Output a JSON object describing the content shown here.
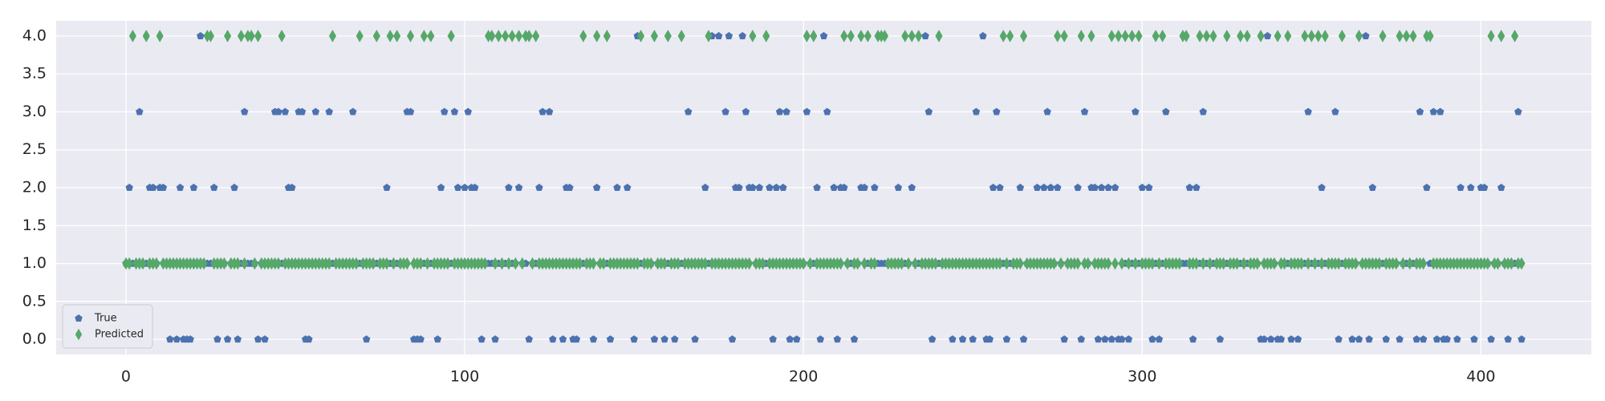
{
  "chart_data": {
    "type": "scatter",
    "x": [
      0,
      1,
      2,
      3,
      4,
      5,
      6,
      7,
      8,
      9,
      10,
      11,
      12,
      13,
      14,
      15,
      16,
      17,
      18,
      19,
      20,
      21,
      22,
      23,
      24,
      25,
      26,
      27,
      28,
      29,
      30,
      31,
      32,
      33,
      34,
      35,
      36,
      37,
      38,
      39,
      40,
      41,
      42,
      43,
      44,
      45,
      46,
      47,
      48,
      49,
      50,
      51,
      52,
      53,
      54,
      55,
      56,
      57,
      58,
      59,
      60,
      61,
      62,
      63,
      64,
      65,
      66,
      67,
      68,
      69,
      70,
      71,
      72,
      73,
      74,
      75,
      76,
      77,
      78,
      79,
      80,
      81,
      82,
      83,
      84,
      85,
      86,
      87,
      88,
      89,
      90,
      91,
      92,
      93,
      94,
      95,
      96,
      97,
      98,
      99,
      100,
      101,
      102,
      103,
      104,
      105,
      106,
      107,
      108,
      109,
      110,
      111,
      112,
      113,
      114,
      115,
      116,
      117,
      118,
      119,
      120,
      121,
      122,
      123,
      124,
      125,
      126,
      127,
      128,
      129,
      130,
      131,
      132,
      133,
      134,
      135,
      136,
      137,
      138,
      139,
      140,
      141,
      142,
      143,
      144,
      145,
      146,
      147,
      148,
      149,
      150,
      151,
      152,
      153,
      154,
      155,
      156,
      157,
      158,
      159,
      160,
      161,
      162,
      163,
      164,
      165,
      166,
      167,
      168,
      169,
      170,
      171,
      172,
      173,
      174,
      175,
      176,
      177,
      178,
      179,
      180,
      181,
      182,
      183,
      184,
      185,
      186,
      187,
      188,
      189,
      190,
      191,
      192,
      193,
      194,
      195,
      196,
      197,
      198,
      199,
      200,
      201,
      202,
      203,
      204,
      205,
      206,
      207,
      208,
      209,
      210,
      211,
      212,
      213,
      214,
      215,
      216,
      217,
      218,
      219,
      220,
      221,
      222,
      223,
      224,
      225,
      226,
      227,
      228,
      229,
      230,
      231,
      232,
      233,
      234,
      235,
      236,
      237,
      238,
      239,
      240,
      241,
      242,
      243,
      244,
      245,
      246,
      247,
      248,
      249,
      250,
      251,
      252,
      253,
      254,
      255,
      256,
      257,
      258,
      259,
      260,
      261,
      262,
      263,
      264,
      265,
      266,
      267,
      268,
      269,
      270,
      271,
      272,
      273,
      274,
      275,
      276,
      277,
      278,
      279,
      280,
      281,
      282,
      283,
      284,
      285,
      286,
      287,
      288,
      289,
      290,
      291,
      292,
      293,
      294,
      295,
      296,
      297,
      298,
      299,
      300,
      301,
      302,
      303,
      304,
      305,
      306,
      307,
      308,
      309,
      310,
      311,
      312,
      313,
      314,
      315,
      316,
      317,
      318,
      319,
      320,
      321,
      322,
      323,
      324,
      325,
      326,
      327,
      328,
      329,
      330,
      331,
      332,
      333,
      334,
      335,
      336,
      337,
      338,
      339,
      340,
      341,
      342,
      343,
      344,
      345,
      346,
      347,
      348,
      349,
      350,
      351,
      352,
      353,
      354,
      355,
      356,
      357,
      358,
      359,
      360,
      361,
      362,
      363,
      364,
      365,
      366,
      367,
      368,
      369,
      370,
      371,
      372,
      373,
      374,
      375,
      376,
      377,
      378,
      379,
      380,
      381,
      382,
      383,
      384,
      385,
      386,
      387,
      388,
      389,
      390,
      391,
      392,
      393,
      394,
      395,
      396,
      397,
      398,
      399,
      400,
      401,
      402,
      403,
      404,
      405,
      406,
      407,
      408,
      409,
      410,
      411,
      412
    ],
    "series": [
      {
        "name": "True",
        "color": "#4c72b0",
        "marker": "pentagon",
        "values": [
          1,
          2,
          1,
          1,
          3,
          1,
          1,
          2,
          2,
          1,
          2,
          2,
          1,
          0,
          1,
          0,
          2,
          0,
          0,
          0,
          2,
          1,
          4,
          1,
          1,
          1,
          2,
          0,
          1,
          1,
          0,
          1,
          2,
          0,
          1,
          3,
          1,
          1,
          1,
          0,
          1,
          0,
          1,
          1,
          3,
          3,
          1,
          3,
          2,
          2,
          1,
          3,
          3,
          0,
          0,
          1,
          3,
          1,
          1,
          1,
          3,
          1,
          1,
          1,
          1,
          1,
          1,
          3,
          1,
          1,
          1,
          0,
          1,
          1,
          1,
          1,
          1,
          2,
          1,
          1,
          1,
          1,
          1,
          3,
          3,
          0,
          0,
          0,
          1,
          1,
          1,
          1,
          0,
          2,
          3,
          1,
          1,
          3,
          2,
          1,
          2,
          3,
          2,
          2,
          1,
          0,
          1,
          1,
          1,
          0,
          1,
          1,
          1,
          2,
          1,
          1,
          2,
          1,
          1,
          0,
          1,
          1,
          2,
          3,
          1,
          3,
          0,
          1,
          1,
          0,
          2,
          2,
          0,
          0,
          1,
          1,
          1,
          1,
          0,
          2,
          1,
          1,
          1,
          0,
          1,
          2,
          1,
          1,
          2,
          1,
          0,
          4,
          1,
          1,
          1,
          1,
          0,
          1,
          1,
          0,
          1,
          1,
          0,
          1,
          1,
          1,
          3,
          1,
          0,
          1,
          1,
          2,
          1,
          4,
          1,
          4,
          1,
          3,
          4,
          0,
          2,
          2,
          4,
          3,
          2,
          2,
          1,
          2,
          1,
          1,
          2,
          0,
          2,
          3,
          2,
          3,
          0,
          1,
          0,
          1,
          1,
          3,
          1,
          1,
          2,
          0,
          4,
          3,
          1,
          2,
          0,
          2,
          2,
          1,
          1,
          0,
          1,
          2,
          2,
          1,
          1,
          2,
          1,
          1,
          1,
          1,
          1,
          1,
          2,
          1,
          1,
          1,
          2,
          1,
          1,
          1,
          4,
          3,
          0,
          1,
          1,
          1,
          1,
          1,
          0,
          1,
          1,
          0,
          1,
          1,
          0,
          3,
          1,
          4,
          0,
          0,
          2,
          3,
          2,
          1,
          0,
          1,
          1,
          1,
          2,
          0,
          1,
          1,
          1,
          2,
          1,
          2,
          3,
          2,
          1,
          2,
          1,
          0,
          1,
          1,
          1,
          2,
          0,
          3,
          1,
          2,
          2,
          0,
          2,
          0,
          2,
          0,
          2,
          0,
          0,
          1,
          0,
          1,
          3,
          1,
          2,
          1,
          2,
          0,
          1,
          0,
          1,
          3,
          1,
          1,
          1,
          1,
          1,
          1,
          2,
          0,
          2,
          1,
          3,
          1,
          1,
          1,
          1,
          0,
          1,
          1,
          1,
          1,
          1,
          1,
          1,
          1,
          1,
          1,
          1,
          0,
          0,
          4,
          0,
          1,
          0,
          0,
          1,
          1,
          0,
          1,
          0,
          1,
          1,
          3,
          1,
          1,
          1,
          2,
          1,
          1,
          1,
          3,
          0,
          1,
          1,
          1,
          0,
          1,
          0,
          1,
          4,
          0,
          2,
          1,
          1,
          1,
          0,
          1,
          1,
          1,
          0,
          1,
          1,
          1,
          1,
          0,
          3,
          0,
          2,
          1,
          3,
          0,
          3,
          0,
          0,
          1,
          1,
          0,
          2,
          1,
          1,
          2,
          0,
          1,
          2,
          2,
          1,
          0,
          1,
          1,
          2,
          1,
          0,
          1,
          1,
          3,
          0
        ]
      },
      {
        "name": "Predicted",
        "color": "#55a868",
        "marker": "diamond",
        "values": [
          1,
          1,
          4,
          1,
          1,
          1,
          4,
          1,
          1,
          1,
          4,
          1,
          1,
          1,
          1,
          1,
          1,
          1,
          1,
          1,
          1,
          1,
          1,
          1,
          4,
          4,
          1,
          1,
          1,
          1,
          4,
          1,
          1,
          1,
          4,
          1,
          4,
          4,
          1,
          4,
          1,
          1,
          1,
          1,
          1,
          1,
          4,
          1,
          1,
          1,
          1,
          1,
          1,
          1,
          1,
          1,
          1,
          1,
          1,
          1,
          1,
          4,
          1,
          1,
          1,
          1,
          1,
          1,
          1,
          4,
          1,
          1,
          1,
          1,
          4,
          1,
          1,
          1,
          4,
          1,
          4,
          1,
          1,
          1,
          4,
          1,
          1,
          1,
          4,
          1,
          4,
          1,
          1,
          1,
          1,
          1,
          4,
          1,
          1,
          1,
          1,
          1,
          1,
          1,
          1,
          1,
          1,
          4,
          4,
          1,
          4,
          1,
          4,
          1,
          4,
          1,
          4,
          1,
          4,
          4,
          1,
          4,
          1,
          1,
          1,
          1,
          1,
          1,
          1,
          1,
          1,
          1,
          1,
          1,
          1,
          4,
          1,
          1,
          1,
          4,
          1,
          1,
          4,
          1,
          1,
          1,
          1,
          1,
          1,
          1,
          1,
          1,
          4,
          1,
          1,
          1,
          4,
          1,
          1,
          1,
          4,
          1,
          1,
          1,
          4,
          1,
          1,
          1,
          1,
          1,
          1,
          1,
          4,
          1,
          1,
          1,
          1,
          1,
          1,
          1,
          1,
          1,
          1,
          1,
          1,
          4,
          1,
          1,
          1,
          4,
          1,
          1,
          1,
          1,
          1,
          1,
          1,
          1,
          1,
          1,
          1,
          4,
          1,
          4,
          1,
          1,
          1,
          1,
          1,
          1,
          1,
          1,
          4,
          1,
          4,
          1,
          1,
          4,
          1,
          4,
          1,
          1,
          4,
          4,
          4,
          1,
          1,
          1,
          1,
          1,
          4,
          1,
          4,
          1,
          4,
          1,
          1,
          1,
          1,
          1,
          4,
          1,
          1,
          1,
          1,
          1,
          1,
          1,
          1,
          1,
          1,
          1,
          1,
          1,
          1,
          1,
          1,
          1,
          1,
          4,
          1,
          4,
          1,
          1,
          1,
          4,
          1,
          1,
          1,
          1,
          1,
          1,
          1,
          1,
          1,
          4,
          1,
          4,
          1,
          1,
          1,
          1,
          4,
          1,
          1,
          4,
          1,
          1,
          1,
          1,
          1,
          4,
          1,
          4,
          1,
          4,
          1,
          4,
          1,
          4,
          1,
          1,
          1,
          1,
          4,
          1,
          4,
          1,
          1,
          1,
          1,
          1,
          4,
          4,
          1,
          1,
          1,
          4,
          1,
          4,
          1,
          4,
          1,
          1,
          1,
          4,
          1,
          1,
          1,
          4,
          1,
          4,
          1,
          1,
          1,
          4,
          1,
          1,
          1,
          1,
          4,
          1,
          1,
          4,
          1,
          1,
          1,
          1,
          4,
          1,
          4,
          1,
          4,
          1,
          4,
          1,
          1,
          1,
          1,
          4,
          1,
          1,
          1,
          1,
          4,
          1,
          1,
          1,
          1,
          1,
          1,
          4,
          1,
          1,
          1,
          1,
          4,
          1,
          4,
          1,
          4,
          1,
          1,
          1,
          4,
          4,
          1,
          1,
          1,
          1,
          1,
          1,
          1,
          1,
          1,
          1,
          1,
          1,
          1,
          1,
          1,
          1,
          1,
          4,
          1,
          1,
          4,
          1,
          1,
          1,
          4,
          1,
          1
        ]
      }
    ],
    "xlim": [
      -20.6,
      432.6
    ],
    "ylim": [
      -0.2,
      4.2
    ],
    "xticks": [
      0,
      100,
      200,
      300,
      400
    ],
    "yticks": [
      {
        "value": 0,
        "label": "0.0"
      },
      {
        "value": 0.5,
        "label": "0.5"
      },
      {
        "value": 1,
        "label": "1.0"
      },
      {
        "value": 1.5,
        "label": "1.5"
      },
      {
        "value": 2,
        "label": "2.0"
      },
      {
        "value": 2.5,
        "label": "2.5"
      },
      {
        "value": 3,
        "label": "3.0"
      },
      {
        "value": 3.5,
        "label": "3.5"
      },
      {
        "value": 4,
        "label": "4.0"
      }
    ],
    "grid": true,
    "legend": "lower left"
  }
}
